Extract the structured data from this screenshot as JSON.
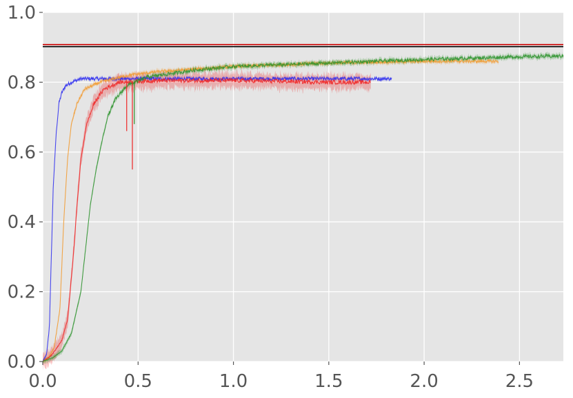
{
  "chart_data": {
    "type": "line",
    "xlim": [
      0,
      2.73
    ],
    "ylim": [
      0,
      1.0
    ],
    "x_ticks": [
      0.0,
      0.5,
      1.0,
      1.5,
      2.0,
      2.5
    ],
    "x_tick_labels": [
      "0.0",
      "0.5",
      "1.0",
      "1.5",
      "2.0",
      "2.5"
    ],
    "y_ticks": [
      0.0,
      0.2,
      0.4,
      0.6,
      0.8,
      1.0
    ],
    "y_tick_labels": [
      "0.0",
      "0.2",
      "0.4",
      "0.6",
      "0.8",
      "1.0"
    ],
    "grid": true,
    "background": "#e5e5e5",
    "grid_color": "#ffffff",
    "reference_lines": [
      {
        "y": 0.908,
        "color": "#cc0000"
      },
      {
        "y": 0.902,
        "color": "#000000"
      }
    ],
    "series": [
      {
        "color": "#2b2bf0",
        "band": 0.006,
        "noise": 0.005,
        "points": [
          [
            0,
            0
          ],
          [
            0.02,
            0.02
          ],
          [
            0.035,
            0.1
          ],
          [
            0.045,
            0.3
          ],
          [
            0.055,
            0.5
          ],
          [
            0.07,
            0.65
          ],
          [
            0.085,
            0.74
          ],
          [
            0.1,
            0.77
          ],
          [
            0.12,
            0.79
          ],
          [
            0.15,
            0.8
          ],
          [
            0.2,
            0.81
          ],
          [
            0.3,
            0.81
          ],
          [
            0.5,
            0.81
          ],
          [
            1.0,
            0.81
          ],
          [
            1.5,
            0.81
          ],
          [
            1.83,
            0.81
          ]
        ]
      },
      {
        "color": "#f29a2e",
        "band": 0.008,
        "noise": 0.004,
        "points": [
          [
            0,
            0
          ],
          [
            0.03,
            0.01
          ],
          [
            0.06,
            0.04
          ],
          [
            0.09,
            0.15
          ],
          [
            0.11,
            0.4
          ],
          [
            0.13,
            0.58
          ],
          [
            0.15,
            0.68
          ],
          [
            0.18,
            0.74
          ],
          [
            0.22,
            0.78
          ],
          [
            0.3,
            0.8
          ],
          [
            0.45,
            0.82
          ],
          [
            0.6,
            0.83
          ],
          [
            1.0,
            0.845
          ],
          [
            1.5,
            0.855
          ],
          [
            2.0,
            0.86
          ],
          [
            2.39,
            0.86
          ]
        ]
      },
      {
        "color": "#ee2222",
        "band": 0.03,
        "noise": 0.006,
        "points": [
          [
            0,
            0
          ],
          [
            0.05,
            0.02
          ],
          [
            0.1,
            0.06
          ],
          [
            0.13,
            0.12
          ],
          [
            0.16,
            0.3
          ],
          [
            0.18,
            0.45
          ],
          [
            0.2,
            0.58
          ],
          [
            0.23,
            0.68
          ],
          [
            0.27,
            0.74
          ],
          [
            0.32,
            0.78
          ],
          [
            0.4,
            0.8
          ],
          [
            0.6,
            0.805
          ],
          [
            1.0,
            0.805
          ],
          [
            1.5,
            0.8
          ],
          [
            1.72,
            0.8
          ]
        ]
      },
      {
        "color": "#2c922c",
        "band": 0.01,
        "noise": 0.005,
        "points": [
          [
            0,
            0
          ],
          [
            0.05,
            0.01
          ],
          [
            0.1,
            0.03
          ],
          [
            0.15,
            0.08
          ],
          [
            0.2,
            0.2
          ],
          [
            0.23,
            0.35
          ],
          [
            0.25,
            0.45
          ],
          [
            0.28,
            0.55
          ],
          [
            0.31,
            0.63
          ],
          [
            0.34,
            0.7
          ],
          [
            0.38,
            0.75
          ],
          [
            0.44,
            0.79
          ],
          [
            0.55,
            0.815
          ],
          [
            0.8,
            0.835
          ],
          [
            1.0,
            0.845
          ],
          [
            1.5,
            0.855
          ],
          [
            2.0,
            0.865
          ],
          [
            2.5,
            0.873
          ],
          [
            2.73,
            0.875
          ]
        ]
      }
    ],
    "dips": [
      {
        "series": 2,
        "x": 0.44,
        "y": 0.66
      },
      {
        "series": 2,
        "x": 0.47,
        "y": 0.55
      },
      {
        "series": 3,
        "x": 0.48,
        "y": 0.68
      }
    ]
  }
}
